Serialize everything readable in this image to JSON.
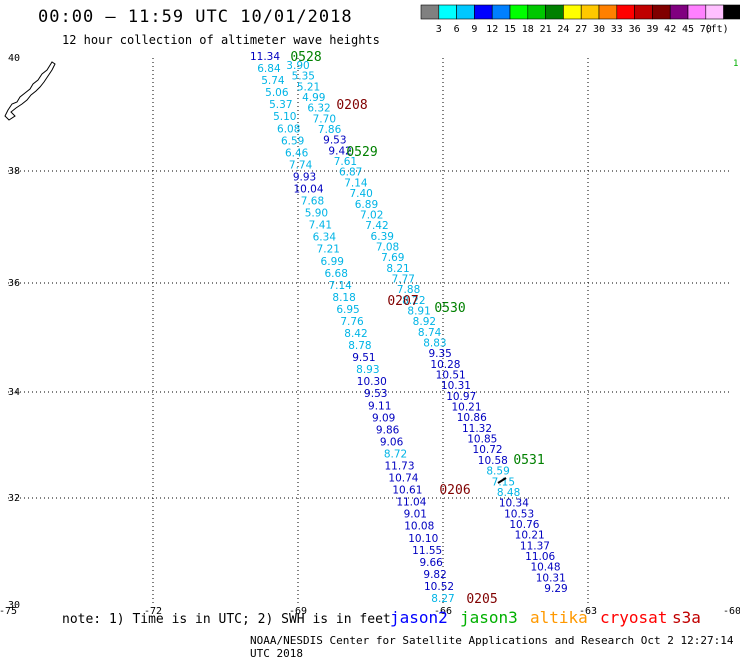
{
  "header": {
    "title": "00:00 — 11:59 UTC 10/01/2018",
    "subtitle": "12 hour collection of altimeter wave heights"
  },
  "legend": {
    "colors": [
      "#808080",
      "#00ffff",
      "#00c8ff",
      "#0000ff",
      "#0080ff",
      "#00ff00",
      "#00c800",
      "#008000",
      "#ffff00",
      "#ffc800",
      "#ff8000",
      "#ff0000",
      "#c00000",
      "#800000",
      "#800080",
      "#ff80ff",
      "#ffc0ff",
      "#000000"
    ],
    "labels": [
      "3",
      "6",
      "9",
      "12",
      "15",
      "18",
      "21",
      "24",
      "27",
      "30",
      "33",
      "36",
      "39",
      "42",
      "45",
      "70",
      "(ft)"
    ]
  },
  "axes": {
    "x_ticks": [
      "-75",
      "-72",
      "-69",
      "-66",
      "-63",
      "-60"
    ],
    "y_ticks": [
      "40",
      "38",
      "36",
      "34",
      "32",
      "30"
    ],
    "edge_label": "1."
  },
  "time_labels": [
    {
      "text": "0528",
      "color": "#008000"
    },
    {
      "text": "0208",
      "color": "#800000"
    },
    {
      "text": "0529",
      "color": "#008000"
    },
    {
      "text": "0207",
      "color": "#800000"
    },
    {
      "text": "0530",
      "color": "#008000"
    },
    {
      "text": "0531",
      "color": "#008000"
    },
    {
      "text": "0206",
      "color": "#800000"
    },
    {
      "text": "0205",
      "color": "#800000"
    }
  ],
  "track_a": [
    {
      "v": "11.34",
      "c": "#0000c0"
    },
    {
      "v": "6.84",
      "c": "#00b4e6"
    },
    {
      "v": "5.74",
      "c": "#00b4e6"
    },
    {
      "v": "5.06",
      "c": "#00b4e6"
    },
    {
      "v": "5.37",
      "c": "#00b4e6"
    },
    {
      "v": "5.10",
      "c": "#00b4e6"
    },
    {
      "v": "6.08",
      "c": "#00b4e6"
    },
    {
      "v": "6.59",
      "c": "#00b4e6"
    },
    {
      "v": "6.46",
      "c": "#00b4e6"
    },
    {
      "v": "7.74",
      "c": "#00b4e6"
    },
    {
      "v": "9.93",
      "c": "#0000c0"
    },
    {
      "v": "10.04",
      "c": "#0000c0"
    },
    {
      "v": "7.68",
      "c": "#00b4e6"
    },
    {
      "v": "5.90",
      "c": "#00b4e6"
    },
    {
      "v": "7.41",
      "c": "#00b4e6"
    },
    {
      "v": "6.34",
      "c": "#00b4e6"
    },
    {
      "v": "7.21",
      "c": "#00b4e6"
    },
    {
      "v": "6.99",
      "c": "#00b4e6"
    },
    {
      "v": "6.68",
      "c": "#00b4e6"
    },
    {
      "v": "7.14",
      "c": "#00b4e6"
    },
    {
      "v": "8.18",
      "c": "#00b4e6"
    },
    {
      "v": "6.95",
      "c": "#00b4e6"
    },
    {
      "v": "7.76",
      "c": "#00b4e6"
    },
    {
      "v": "8.42",
      "c": "#00b4e6"
    },
    {
      "v": "8.78",
      "c": "#00b4e6"
    },
    {
      "v": "9.51",
      "c": "#0000c0"
    },
    {
      "v": "8.93",
      "c": "#00b4e6"
    },
    {
      "v": "10.30",
      "c": "#0000c0"
    },
    {
      "v": "9.53",
      "c": "#0000c0"
    },
    {
      "v": "9.11",
      "c": "#0000c0"
    },
    {
      "v": "9.09",
      "c": "#0000c0"
    },
    {
      "v": "9.86",
      "c": "#0000c0"
    },
    {
      "v": "9.06",
      "c": "#0000c0"
    },
    {
      "v": "8.72",
      "c": "#00b4e6"
    },
    {
      "v": "11.73",
      "c": "#0000c0"
    },
    {
      "v": "10.74",
      "c": "#0000c0"
    },
    {
      "v": "10.61",
      "c": "#0000c0"
    },
    {
      "v": "11.04",
      "c": "#0000c0"
    },
    {
      "v": "9.01",
      "c": "#0000c0"
    },
    {
      "v": "10.08",
      "c": "#0000c0"
    },
    {
      "v": "10.10",
      "c": "#0000c0"
    },
    {
      "v": "11.55",
      "c": "#0000c0"
    },
    {
      "v": "9.66",
      "c": "#0000c0"
    },
    {
      "v": "9.82",
      "c": "#0000c0"
    },
    {
      "v": "10.52",
      "c": "#0000c0"
    },
    {
      "v": "8.27",
      "c": "#00b4e6"
    }
  ],
  "track_b": [
    {
      "v": "3.90",
      "c": "#00b4e6"
    },
    {
      "v": "5.35",
      "c": "#00b4e6"
    },
    {
      "v": "5.21",
      "c": "#00b4e6"
    },
    {
      "v": "4.99",
      "c": "#00b4e6"
    },
    {
      "v": "6.32",
      "c": "#00b4e6"
    },
    {
      "v": "7.70",
      "c": "#00b4e6"
    },
    {
      "v": "7.86",
      "c": "#00b4e6"
    },
    {
      "v": "9.53",
      "c": "#0000c0"
    },
    {
      "v": "9.42",
      "c": "#0000c0"
    },
    {
      "v": "7.61",
      "c": "#00b4e6"
    },
    {
      "v": "6.87",
      "c": "#00b4e6"
    },
    {
      "v": "7.14",
      "c": "#00b4e6"
    },
    {
      "v": "7.40",
      "c": "#00b4e6"
    },
    {
      "v": "6.89",
      "c": "#00b4e6"
    },
    {
      "v": "7.02",
      "c": "#00b4e6"
    },
    {
      "v": "7.42",
      "c": "#00b4e6"
    },
    {
      "v": "6.39",
      "c": "#00b4e6"
    },
    {
      "v": "7.08",
      "c": "#00b4e6"
    },
    {
      "v": "7.69",
      "c": "#00b4e6"
    },
    {
      "v": "8.21",
      "c": "#00b4e6"
    },
    {
      "v": "7.77",
      "c": "#00b4e6"
    },
    {
      "v": "7.88",
      "c": "#00b4e6"
    },
    {
      "v": "8.22",
      "c": "#00b4e6"
    },
    {
      "v": "8.91",
      "c": "#00b4e6"
    },
    {
      "v": "8.92",
      "c": "#00b4e6"
    },
    {
      "v": "8.74",
      "c": "#00b4e6"
    },
    {
      "v": "8.83",
      "c": "#00b4e6"
    },
    {
      "v": "9.35",
      "c": "#0000c0"
    },
    {
      "v": "10.28",
      "c": "#0000c0"
    },
    {
      "v": "10.51",
      "c": "#0000c0"
    },
    {
      "v": "10.31",
      "c": "#0000c0"
    },
    {
      "v": "10.97",
      "c": "#0000c0"
    },
    {
      "v": "10.21",
      "c": "#0000c0"
    },
    {
      "v": "10.86",
      "c": "#0000c0"
    },
    {
      "v": "11.32",
      "c": "#0000c0"
    },
    {
      "v": "10.85",
      "c": "#0000c0"
    },
    {
      "v": "10.72",
      "c": "#0000c0"
    },
    {
      "v": "10.58",
      "c": "#0000c0"
    },
    {
      "v": "8.59",
      "c": "#00b4e6"
    },
    {
      "v": "7.15",
      "c": "#00b4e6"
    },
    {
      "v": "8.48",
      "c": "#00b4e6"
    },
    {
      "v": "10.34",
      "c": "#0000c0"
    },
    {
      "v": "10.53",
      "c": "#0000c0"
    },
    {
      "v": "10.76",
      "c": "#0000c0"
    },
    {
      "v": "10.21",
      "c": "#0000c0"
    },
    {
      "v": "11.37",
      "c": "#0000c0"
    },
    {
      "v": "11.06",
      "c": "#0000c0"
    },
    {
      "v": "10.48",
      "c": "#0000c0"
    },
    {
      "v": "10.31",
      "c": "#0000c0"
    },
    {
      "v": "9.29",
      "c": "#0000c0"
    }
  ],
  "note": "note: 1) Time is in UTC; 2) SWH is in feet",
  "satellites": [
    {
      "name": "jason2",
      "color": "#0000ff"
    },
    {
      "name": "jason3",
      "color": "#00b000"
    },
    {
      "name": "altika",
      "color": "#ff9900"
    },
    {
      "name": "cryosat",
      "color": "#ff0000"
    },
    {
      "name": "s3a",
      "color": "#c00000"
    }
  ],
  "footer": "NOAA/NESDIS Center for Satellite Applications and Research   Oct  2 12:27:14 UTC 2018"
}
